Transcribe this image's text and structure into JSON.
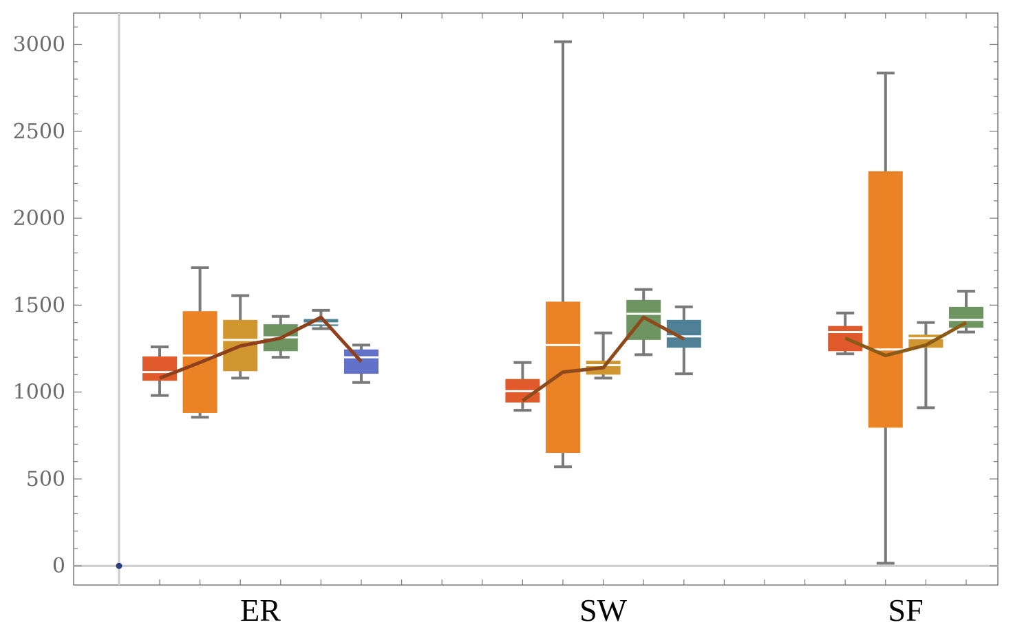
{
  "chart_data": {
    "type": "box",
    "title": "",
    "xlabel": "",
    "ylabel": "",
    "ylim": [
      -110,
      3180
    ],
    "grid": false,
    "y_ticks": [
      0,
      500,
      1000,
      1500,
      2000,
      2500,
      3000
    ],
    "groups": [
      {
        "name": "ER",
        "boxes": [
          {
            "color": "#e05a2b",
            "min": 980,
            "q1": 1065,
            "median": 1115,
            "q3": 1205,
            "max": 1260
          },
          {
            "color": "#eb8326",
            "min": 855,
            "q1": 880,
            "median": 1210,
            "q3": 1465,
            "max": 1715
          },
          {
            "color": "#d0962f",
            "min": 1080,
            "q1": 1120,
            "median": 1300,
            "q3": 1415,
            "max": 1555
          },
          {
            "color": "#6e9461",
            "min": 1200,
            "q1": 1235,
            "median": 1315,
            "q3": 1390,
            "max": 1435
          },
          {
            "color": "#4e8196",
            "min": 1365,
            "q1": 1380,
            "median": 1395,
            "q3": 1420,
            "max": 1470
          },
          {
            "color": "#6272c8",
            "min": 1055,
            "q1": 1105,
            "median": 1200,
            "q3": 1245,
            "max": 1270
          }
        ],
        "trend": {
          "color": "#8e3f1c",
          "values": [
            1080,
            1170,
            1265,
            1310,
            1430,
            1175
          ]
        }
      },
      {
        "name": "SW",
        "boxes": [
          {
            "color": "#e05a2b",
            "min": 895,
            "q1": 940,
            "median": 1005,
            "q3": 1075,
            "max": 1170
          },
          {
            "color": "#eb8326",
            "min": 570,
            "q1": 650,
            "median": 1270,
            "q3": 1520,
            "max": 3015
          },
          {
            "color": "#d0962f",
            "min": 1080,
            "q1": 1100,
            "median": 1155,
            "q3": 1180,
            "max": 1340
          },
          {
            "color": "#6e9461",
            "min": 1215,
            "q1": 1300,
            "median": 1450,
            "q3": 1530,
            "max": 1590
          },
          {
            "color": "#4e8196",
            "min": 1105,
            "q1": 1255,
            "median": 1320,
            "q3": 1415,
            "max": 1490
          }
        ],
        "trend": {
          "color": "#8e4a1a",
          "values": [
            950,
            1115,
            1140,
            1430,
            1305
          ]
        }
      },
      {
        "name": "SF",
        "boxes": [
          {
            "color": "#e05a2b",
            "min": 1220,
            "q1": 1235,
            "median": 1345,
            "q3": 1380,
            "max": 1455
          },
          {
            "color": "#eb8326",
            "min": 15,
            "q1": 795,
            "median": 1245,
            "q3": 2270,
            "max": 2835
          },
          {
            "color": "#d0962f",
            "min": 910,
            "q1": 1255,
            "median": 1310,
            "q3": 1330,
            "max": 1400
          },
          {
            "color": "#6e9461",
            "min": 1345,
            "q1": 1370,
            "median": 1415,
            "q3": 1490,
            "max": 1580
          }
        ],
        "trend": {
          "color": "#8b5a16",
          "values": [
            1310,
            1210,
            1270,
            1400
          ]
        }
      }
    ],
    "origin_point": {
      "x": 0,
      "y": 0,
      "color": "#2b3f7a"
    }
  }
}
